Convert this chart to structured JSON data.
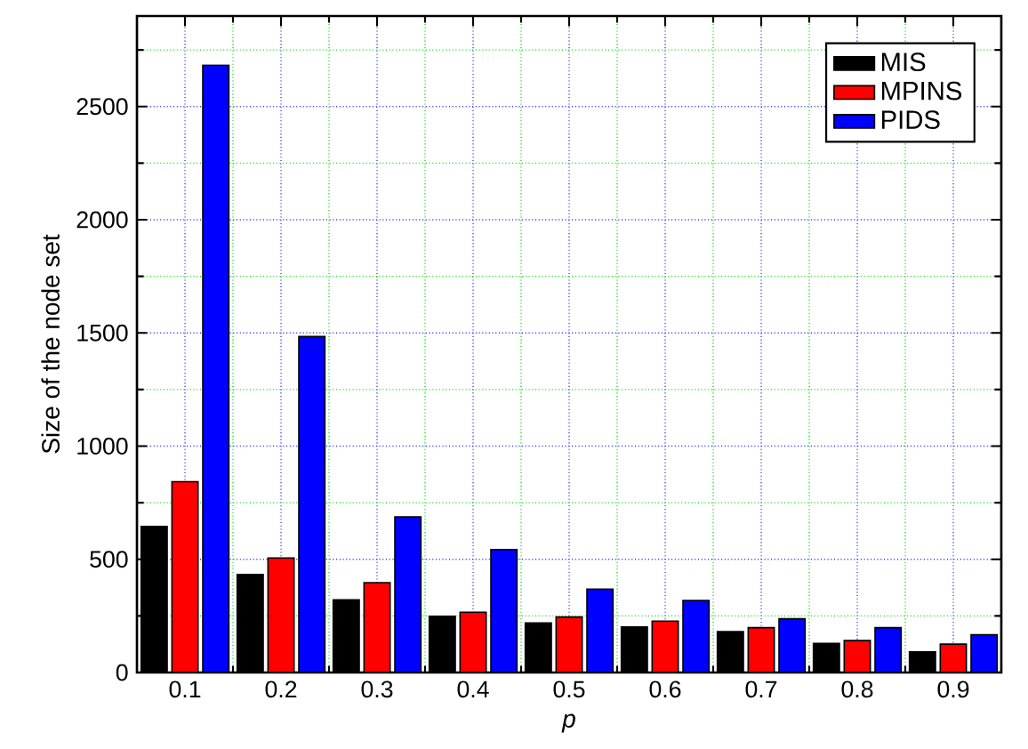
{
  "chart_data": {
    "type": "bar",
    "xlabel": "p",
    "ylabel": "Size of the node set",
    "categories": [
      "0.1",
      "0.2",
      "0.3",
      "0.4",
      "0.5",
      "0.6",
      "0.7",
      "0.8",
      "0.9"
    ],
    "series": [
      {
        "name": "MIS",
        "color": "#000000",
        "values": [
          645,
          433,
          321,
          248,
          219,
          201,
          180,
          128,
          91
        ]
      },
      {
        "name": "MPINS",
        "color": "#ff0000",
        "values": [
          843,
          506,
          397,
          266,
          245,
          227,
          198,
          141,
          125
        ]
      },
      {
        "name": "PIDS",
        "color": "#0000ff",
        "values": [
          2683,
          1484,
          687,
          543,
          368,
          318,
          237,
          198,
          167
        ]
      }
    ],
    "ylim": [
      0,
      2900
    ],
    "yticks": [
      0,
      500,
      1000,
      1500,
      2000,
      2500
    ],
    "grid": true,
    "legend": "top right"
  }
}
